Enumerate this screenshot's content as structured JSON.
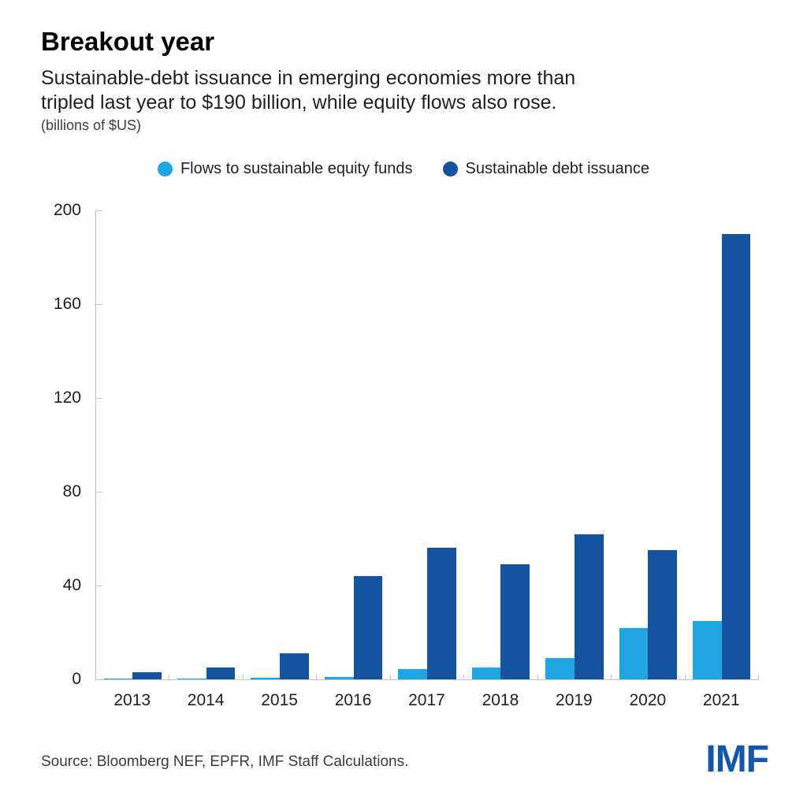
{
  "header": {
    "subtitle_line1": "Sustainable-debt issuance in emerging economies more than",
    "subtitle_line2": "tripled last year to $190 billion, while equity flows also rose.",
    "units": "(billions of $US)"
  },
  "chart_data": {
    "type": "bar",
    "title": "Breakout year",
    "subtitle": "Sustainable-debt issuance in emerging economies more than tripled last year to $190 billion, while equity flows also rose.",
    "units_label": "(billions of $US)",
    "categories": [
      "2013",
      "2014",
      "2015",
      "2016",
      "2017",
      "2018",
      "2019",
      "2020",
      "2021"
    ],
    "series": [
      {
        "name": "Flows to sustainable equity funds",
        "key": "equity",
        "color": "#1ea6e2",
        "values": [
          0.3,
          0.5,
          0.8,
          1,
          4.5,
          5,
          9,
          22,
          25
        ]
      },
      {
        "name": "Sustainable debt issuance",
        "key": "debt",
        "color": "#14549e",
        "values": [
          3,
          5,
          11,
          44,
          56,
          49,
          62,
          55,
          190
        ]
      }
    ],
    "xlabel": "",
    "ylabel": "",
    "yticks": [
      0,
      40,
      80,
      120,
      160,
      200
    ],
    "ylim": [
      0,
      200
    ],
    "grid": false,
    "legend_position": "top"
  },
  "footer": {
    "source": "Source: Bloomberg NEF, EPFR, IMF Staff Calculations.",
    "logo": "IMF",
    "logo_color": "#1257a9"
  },
  "colors": {
    "axis": "#c2c2c2",
    "text": "#231f20",
    "equity_blue": "#1ea6e2",
    "debt_blue": "#14549e"
  }
}
